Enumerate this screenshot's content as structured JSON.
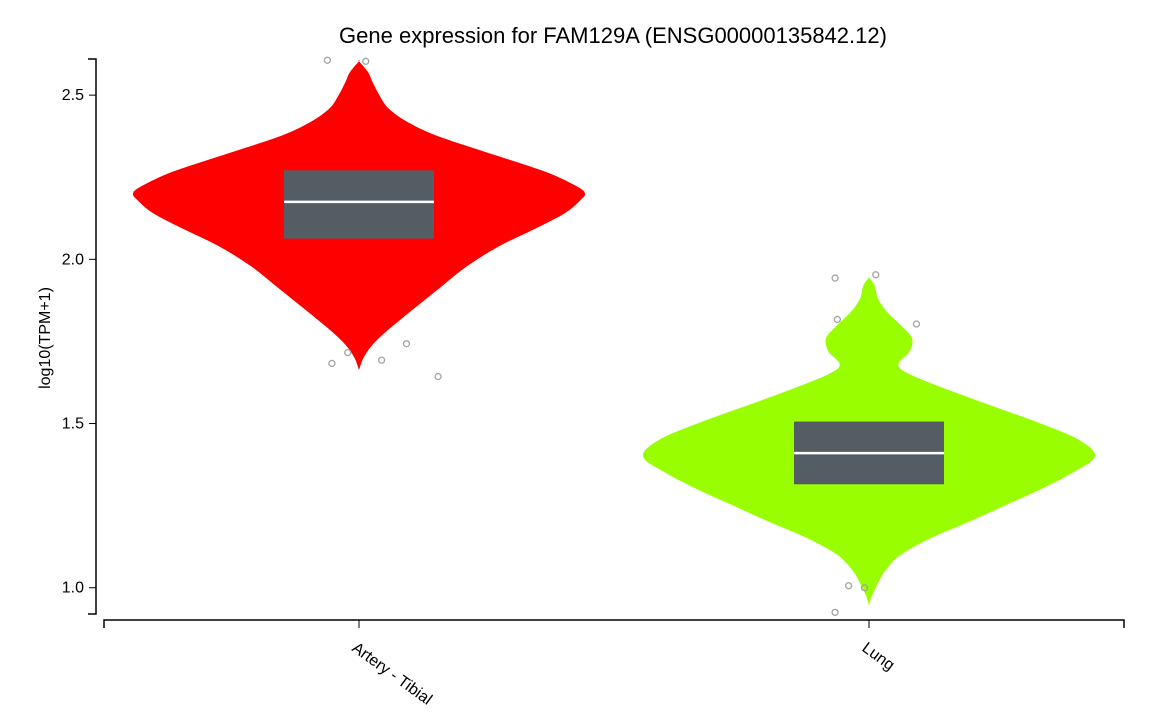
{
  "chart_data": {
    "type": "violin",
    "title": "Gene expression for FAM129A (ENSG00000135842.12)",
    "xlabel": "",
    "ylabel": "log10(TPM+1)",
    "ylim": [
      0.92,
      2.61
    ],
    "yticks": [
      1.0,
      1.5,
      2.0,
      2.5
    ],
    "ytick_labels": [
      "1.0",
      "1.5",
      "2.0",
      "2.5"
    ],
    "categories": [
      "Artery - Tibial",
      "Lung"
    ],
    "series": [
      {
        "category": "Artery - Tibial",
        "color": "#ff0000",
        "box_color": "#555d64",
        "median": 2.175,
        "q1": 2.063,
        "q3": 2.271,
        "min": 1.663,
        "max": 2.603,
        "density": [
          [
            1.663,
            0.0
          ],
          [
            1.7,
            0.02
          ],
          [
            1.74,
            0.06
          ],
          [
            1.78,
            0.12
          ],
          [
            1.82,
            0.19
          ],
          [
            1.87,
            0.28
          ],
          [
            1.92,
            0.37
          ],
          [
            1.98,
            0.48
          ],
          [
            2.04,
            0.62
          ],
          [
            2.09,
            0.77
          ],
          [
            2.14,
            0.91
          ],
          [
            2.18,
            0.98
          ],
          [
            2.2,
            1.0
          ],
          [
            2.22,
            0.97
          ],
          [
            2.26,
            0.85
          ],
          [
            2.3,
            0.68
          ],
          [
            2.34,
            0.5
          ],
          [
            2.38,
            0.33
          ],
          [
            2.42,
            0.21
          ],
          [
            2.46,
            0.13
          ],
          [
            2.5,
            0.09
          ],
          [
            2.54,
            0.06
          ],
          [
            2.57,
            0.04
          ],
          [
            2.603,
            0.0
          ]
        ],
        "outliers": [
          {
            "x": -0.14,
            "y": 2.606
          },
          {
            "x": 0.03,
            "y": 2.603
          },
          {
            "x": -0.05,
            "y": 1.716
          },
          {
            "x": -0.12,
            "y": 1.683
          },
          {
            "x": 0.1,
            "y": 1.693
          },
          {
            "x": 0.21,
            "y": 1.743
          },
          {
            "x": 0.35,
            "y": 1.643
          }
        ]
      },
      {
        "category": "Lung",
        "color": "#99ff00",
        "box_color": "#555d64",
        "median": 1.41,
        "q1": 1.315,
        "q3": 1.506,
        "min": 0.945,
        "max": 1.945,
        "density": [
          [
            0.945,
            0.0
          ],
          [
            0.97,
            0.01
          ],
          [
            1.0,
            0.03
          ],
          [
            1.05,
            0.07
          ],
          [
            1.1,
            0.14
          ],
          [
            1.15,
            0.27
          ],
          [
            1.2,
            0.44
          ],
          [
            1.25,
            0.6
          ],
          [
            1.3,
            0.76
          ],
          [
            1.35,
            0.9
          ],
          [
            1.4,
            1.0
          ],
          [
            1.45,
            0.93
          ],
          [
            1.5,
            0.76
          ],
          [
            1.55,
            0.56
          ],
          [
            1.6,
            0.36
          ],
          [
            1.65,
            0.18
          ],
          [
            1.68,
            0.13
          ],
          [
            1.72,
            0.18
          ],
          [
            1.76,
            0.19
          ],
          [
            1.8,
            0.14
          ],
          [
            1.84,
            0.08
          ],
          [
            1.88,
            0.04
          ],
          [
            1.92,
            0.025
          ],
          [
            1.945,
            0.0
          ]
        ],
        "outliers": [
          {
            "x": -0.15,
            "y": 1.943
          },
          {
            "x": 0.03,
            "y": 1.953
          },
          {
            "x": -0.14,
            "y": 1.817
          },
          {
            "x": 0.21,
            "y": 1.803
          },
          {
            "x": -0.09,
            "y": 1.006
          },
          {
            "x": -0.02,
            "y": 1.0
          },
          {
            "x": -0.15,
            "y": 0.925
          }
        ]
      }
    ],
    "grid": false,
    "legend": "none"
  }
}
